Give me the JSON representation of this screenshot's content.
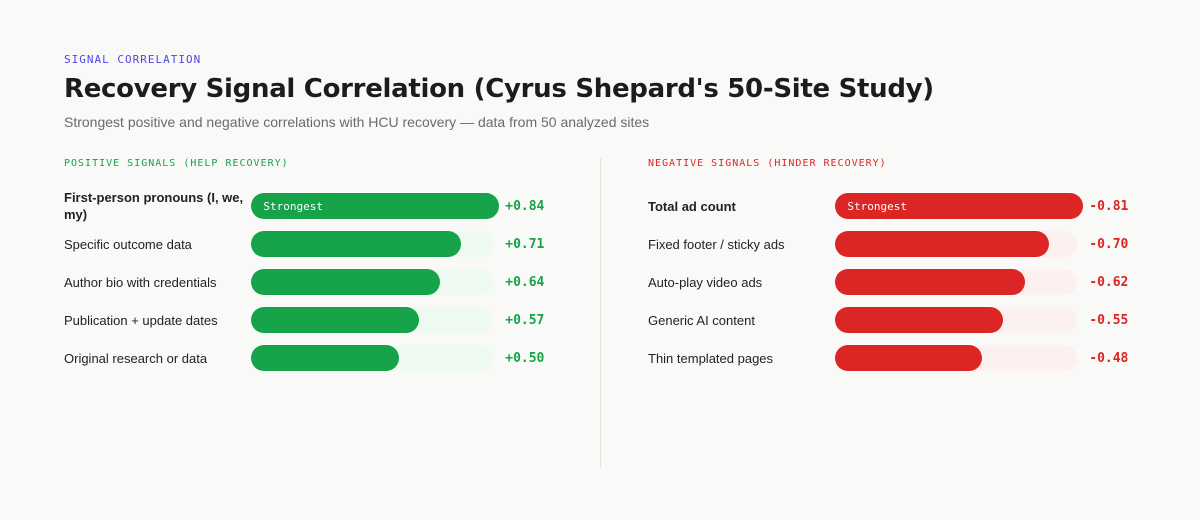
{
  "header": {
    "eyebrow": "SIGNAL CORRELATION",
    "title": "Recovery Signal Correlation (Cyrus Shepard's 50-Site Study)",
    "subtitle": "Strongest positive and negative correlations with HCU recovery — data from 50 analyzed sites"
  },
  "colors": {
    "positive": "#16a34a",
    "negative": "#dc2626",
    "accent": "#4f46e5"
  },
  "chart_data": [
    {
      "type": "bar",
      "orientation": "horizontal",
      "title": "POSITIVE SIGNALS (HELP RECOVERY)",
      "categories": [
        "First-person pronouns (I, we, my)",
        "Specific outcome data",
        "Author bio with credentials",
        "Publication + update dates",
        "Original research or data"
      ],
      "values": [
        0.84,
        0.71,
        0.64,
        0.57,
        0.5
      ],
      "display_values": [
        "+0.84",
        "+0.71",
        "+0.64",
        "+0.57",
        "+0.50"
      ],
      "xlim": [
        0,
        0.84
      ],
      "highlight_label": "Strongest",
      "highlight_index": 0
    },
    {
      "type": "bar",
      "orientation": "horizontal",
      "title": "NEGATIVE SIGNALS (HINDER RECOVERY)",
      "categories": [
        "Total ad count",
        "Fixed footer / sticky ads",
        "Auto-play video ads",
        "Generic AI content",
        "Thin templated pages"
      ],
      "values": [
        -0.81,
        -0.7,
        -0.62,
        -0.55,
        -0.48
      ],
      "display_values": [
        "-0.81",
        "-0.70",
        "-0.62",
        "-0.55",
        "-0.48"
      ],
      "xlim": [
        0,
        -0.81
      ],
      "highlight_label": "Strongest",
      "highlight_index": 0
    }
  ]
}
